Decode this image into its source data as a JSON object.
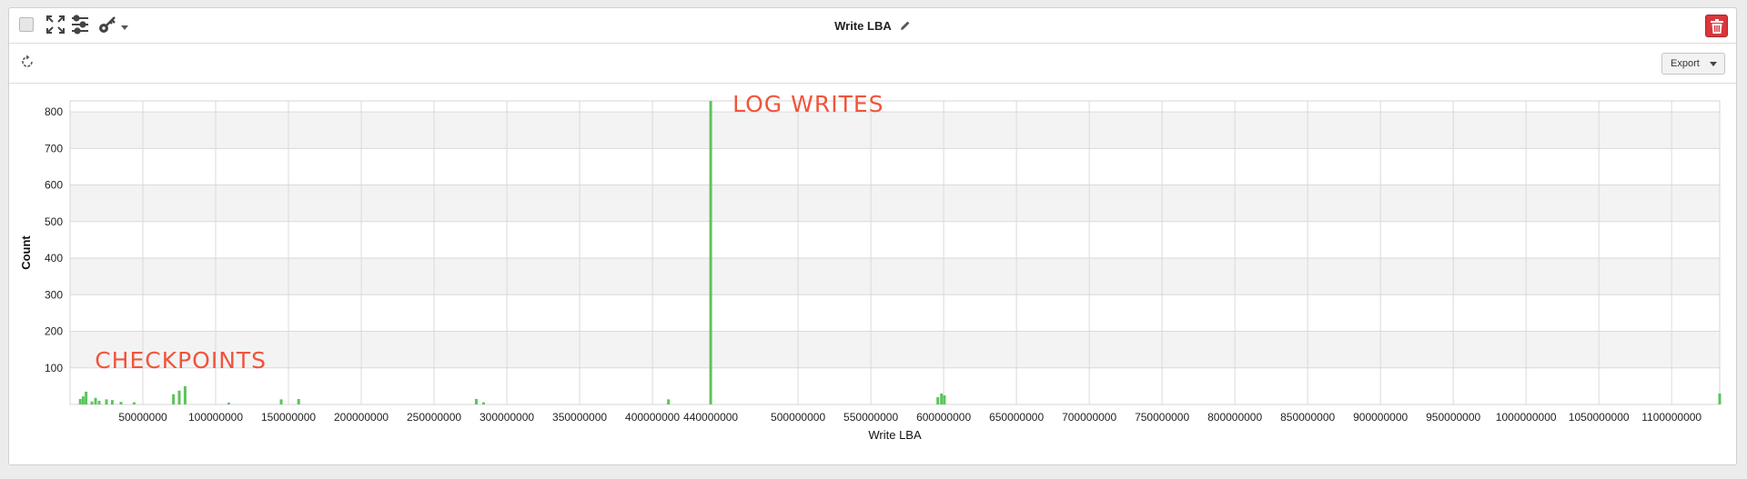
{
  "window": {
    "title": "Write LBA",
    "export_label": "Export",
    "colors": {
      "delete": "#d9363b",
      "bar": "#5cc45c",
      "annotation": "#f0543c",
      "band": "#f3f3f3"
    }
  },
  "icons": [
    "checkbox-icon",
    "fullscreen-icon",
    "sliders-icon",
    "key-icon",
    "chevron-down-icon",
    "pencil-icon",
    "trash-icon",
    "refresh-icon",
    "caret-down-icon"
  ],
  "chart_data": {
    "type": "bar",
    "title": "",
    "xlabel": "Write LBA",
    "ylabel": "Count",
    "xlim": [
      0,
      1133000000
    ],
    "ylim": [
      0,
      830
    ],
    "grid": true,
    "legend": "none",
    "y_ticks": [
      100,
      200,
      300,
      400,
      500,
      600,
      700,
      800
    ],
    "x_ticks": [
      {
        "value": 50000000,
        "label": "50000000"
      },
      {
        "value": 100000000,
        "label": "100000000"
      },
      {
        "value": 150000000,
        "label": "150000000"
      },
      {
        "value": 200000000,
        "label": "200000000"
      },
      {
        "value": 250000000,
        "label": "250000000"
      },
      {
        "value": 300000000,
        "label": "300000000"
      },
      {
        "value": 350000000,
        "label": "350000000"
      },
      {
        "value": 400000000,
        "label": "400000000"
      },
      {
        "value": 440000000,
        "label": "440000000"
      },
      {
        "value": 500000000,
        "label": "500000000"
      },
      {
        "value": 550000000,
        "label": "550000000"
      },
      {
        "value": 600000000,
        "label": "600000000"
      },
      {
        "value": 650000000,
        "label": "650000000"
      },
      {
        "value": 700000000,
        "label": "700000000"
      },
      {
        "value": 750000000,
        "label": "750000000"
      },
      {
        "value": 800000000,
        "label": "800000000"
      },
      {
        "value": 850000000,
        "label": "850000000"
      },
      {
        "value": 900000000,
        "label": "900000000"
      },
      {
        "value": 950000000,
        "label": "950000000"
      },
      {
        "value": 1000000000,
        "label": "1000000000"
      },
      {
        "value": 1050000000,
        "label": "1050000000"
      },
      {
        "value": 1100000000,
        "label": "1100000000"
      }
    ],
    "bars": [
      {
        "x": 7000000,
        "y": 15
      },
      {
        "x": 9000000,
        "y": 22
      },
      {
        "x": 11000000,
        "y": 35
      },
      {
        "x": 15000000,
        "y": 8
      },
      {
        "x": 17500000,
        "y": 18
      },
      {
        "x": 20000000,
        "y": 10
      },
      {
        "x": 25000000,
        "y": 14
      },
      {
        "x": 29000000,
        "y": 12
      },
      {
        "x": 35000000,
        "y": 7
      },
      {
        "x": 44000000,
        "y": 6
      },
      {
        "x": 71000000,
        "y": 28
      },
      {
        "x": 75000000,
        "y": 38
      },
      {
        "x": 79000000,
        "y": 50
      },
      {
        "x": 109000000,
        "y": 5
      },
      {
        "x": 145000000,
        "y": 14
      },
      {
        "x": 157000000,
        "y": 15
      },
      {
        "x": 279000000,
        "y": 15
      },
      {
        "x": 284000000,
        "y": 6
      },
      {
        "x": 411000000,
        "y": 14
      },
      {
        "x": 440000000,
        "y": 830
      },
      {
        "x": 596000000,
        "y": 20
      },
      {
        "x": 598500000,
        "y": 30
      },
      {
        "x": 600500000,
        "y": 25
      },
      {
        "x": 1133000000,
        "y": 30
      }
    ],
    "annotations": [
      {
        "text": "LOG WRITES",
        "x": 455000000,
        "y": 800
      },
      {
        "text": "CHECKPOINTS",
        "x": 17000000,
        "y": 100
      }
    ]
  }
}
